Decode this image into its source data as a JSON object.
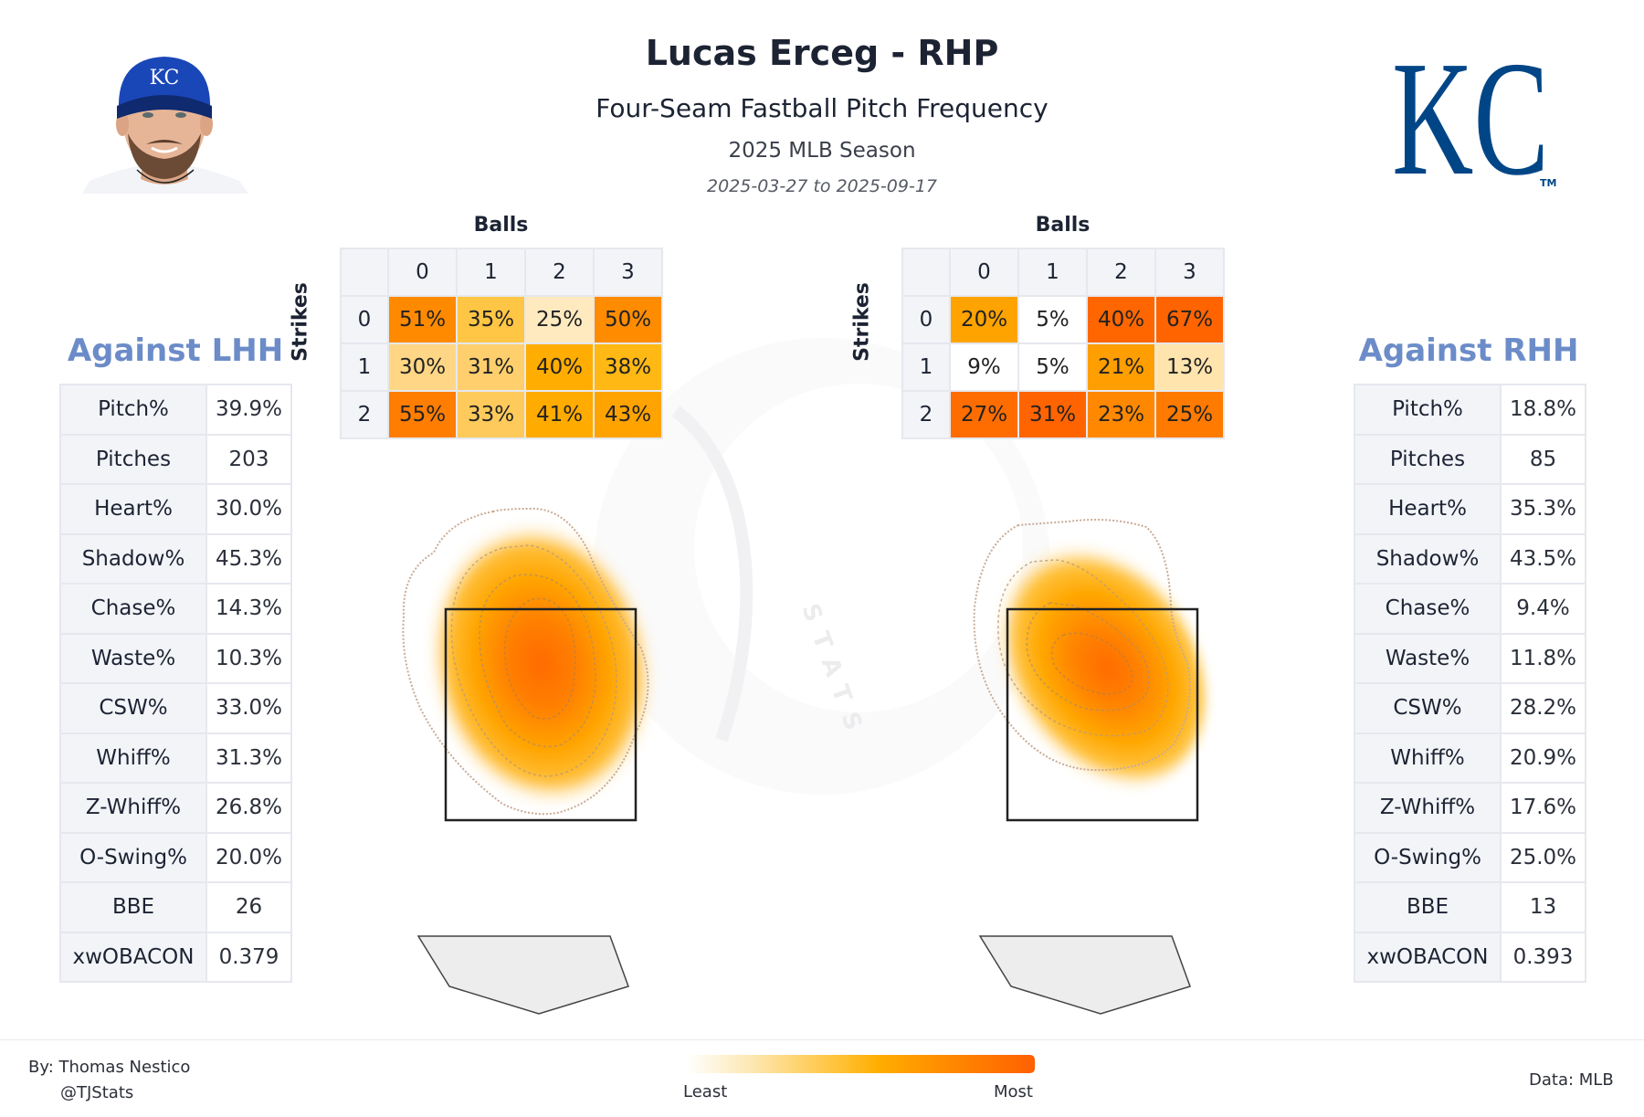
{
  "header": {
    "title": "Lucas Erceg - RHP",
    "subtitle": "Four-Seam Fastball Pitch Frequency",
    "season": "2025 MLB Season",
    "date_range": "2025-03-27 to 2025-09-17"
  },
  "logo": {
    "text": "KC",
    "tm": "TM",
    "color": "#004687"
  },
  "headshot": {
    "cap_text": "KC",
    "cap_color": "#1a47b8"
  },
  "count_tables": {
    "balls_label": "Balls",
    "strikes_label": "Strikes",
    "ball_headers": [
      "0",
      "1",
      "2",
      "3"
    ],
    "strike_headers": [
      "0",
      "1",
      "2"
    ],
    "lhh": {
      "rows": [
        [
          "51%",
          "35%",
          "25%",
          "50%"
        ],
        [
          "30%",
          "31%",
          "40%",
          "38%"
        ],
        [
          "55%",
          "33%",
          "41%",
          "43%"
        ]
      ],
      "colors": [
        [
          "#ff8a00",
          "#ffc645",
          "#ffeac0",
          "#ff8c00"
        ],
        [
          "#ffd685",
          "#ffcf6e",
          "#ffad00",
          "#ffb814"
        ],
        [
          "#ff7d00",
          "#ffca5c",
          "#ffab00",
          "#ffa300"
        ]
      ]
    },
    "rhh": {
      "rows": [
        [
          "20%",
          "5%",
          "40%",
          "67%"
        ],
        [
          "9%",
          "5%",
          "21%",
          "13%"
        ],
        [
          "27%",
          "31%",
          "23%",
          "25%"
        ]
      ],
      "colors": [
        [
          "#ffa300",
          "#ffffff",
          "#ff6600",
          "#ff6400"
        ],
        [
          "#ffffff",
          "#ffffff",
          "#ff9e00",
          "#ffe4ad"
        ],
        [
          "#ff6d00",
          "#ff6400",
          "#ff8800",
          "#ff7a00"
        ]
      ]
    }
  },
  "stats": {
    "labels": [
      "Pitch%",
      "Pitches",
      "Heart%",
      "Shadow%",
      "Chase%",
      "Waste%",
      "CSW%",
      "Whiff%",
      "Z-Whiff%",
      "O-Swing%",
      "BBE",
      "xwOBACON"
    ],
    "lhh": {
      "title": "Against LHH",
      "values": [
        "39.9%",
        "203",
        "30.0%",
        "45.3%",
        "14.3%",
        "10.3%",
        "33.0%",
        "31.3%",
        "26.8%",
        "20.0%",
        "26",
        "0.379"
      ]
    },
    "rhh": {
      "title": "Against RHH",
      "values": [
        "18.8%",
        "85",
        "35.3%",
        "43.5%",
        "9.4%",
        "11.8%",
        "28.2%",
        "20.9%",
        "17.6%",
        "25.0%",
        "13",
        "0.393"
      ]
    }
  },
  "watermark": {
    "text": "STATS"
  },
  "legend": {
    "least": "Least",
    "most": "Most",
    "gradient": [
      "#ffffff",
      "#fde8b4",
      "#ffc84a",
      "#ffae00",
      "#ff8a00",
      "#ff6000"
    ]
  },
  "footer": {
    "author": "By: Thomas Nestico",
    "handle": "@TJStats",
    "source": "Data: MLB"
  },
  "chart_data": [
    {
      "type": "table",
      "title": "Four-Seam Fastball Frequency by Count - Against LHH",
      "xlabel": "Balls",
      "ylabel": "Strikes",
      "columns": [
        "0",
        "1",
        "2",
        "3"
      ],
      "rows": [
        "0",
        "1",
        "2"
      ],
      "values": [
        [
          51,
          35,
          25,
          50
        ],
        [
          30,
          31,
          40,
          38
        ],
        [
          55,
          33,
          41,
          43
        ]
      ],
      "unit": "%"
    },
    {
      "type": "table",
      "title": "Four-Seam Fastball Frequency by Count - Against RHH",
      "xlabel": "Balls",
      "ylabel": "Strikes",
      "columns": [
        "0",
        "1",
        "2",
        "3"
      ],
      "rows": [
        "0",
        "1",
        "2"
      ],
      "values": [
        [
          20,
          5,
          40,
          67
        ],
        [
          9,
          5,
          21,
          13
        ],
        [
          27,
          31,
          23,
          25
        ]
      ],
      "unit": "%"
    },
    {
      "type": "heatmap",
      "title": "Pitch Location Density - Against LHH",
      "description": "KDE of pitch locations, peak centered in upper-middle of strike zone",
      "legend": [
        "Least",
        "Most"
      ]
    },
    {
      "type": "heatmap",
      "title": "Pitch Location Density - Against RHH",
      "description": "KDE of pitch locations, peak slightly above middle toward arm side of strike zone",
      "legend": [
        "Least",
        "Most"
      ]
    },
    {
      "type": "table",
      "title": "Against LHH",
      "columns": [
        "Stat",
        "Value"
      ],
      "rows": [
        [
          "Pitch%",
          "39.9%"
        ],
        [
          "Pitches",
          "203"
        ],
        [
          "Heart%",
          "30.0%"
        ],
        [
          "Shadow%",
          "45.3%"
        ],
        [
          "Chase%",
          "14.3%"
        ],
        [
          "Waste%",
          "10.3%"
        ],
        [
          "CSW%",
          "33.0%"
        ],
        [
          "Whiff%",
          "31.3%"
        ],
        [
          "Z-Whiff%",
          "26.8%"
        ],
        [
          "O-Swing%",
          "20.0%"
        ],
        [
          "BBE",
          "26"
        ],
        [
          "xwOBACON",
          "0.379"
        ]
      ]
    },
    {
      "type": "table",
      "title": "Against RHH",
      "columns": [
        "Stat",
        "Value"
      ],
      "rows": [
        [
          "Pitch%",
          "18.8%"
        ],
        [
          "Pitches",
          "85"
        ],
        [
          "Heart%",
          "35.3%"
        ],
        [
          "Shadow%",
          "43.5%"
        ],
        [
          "Chase%",
          "9.4%"
        ],
        [
          "Waste%",
          "11.8%"
        ],
        [
          "CSW%",
          "28.2%"
        ],
        [
          "Whiff%",
          "20.9%"
        ],
        [
          "Z-Whiff%",
          "17.6%"
        ],
        [
          "O-Swing%",
          "25.0%"
        ],
        [
          "BBE",
          "13"
        ],
        [
          "xwOBACON",
          "0.393"
        ]
      ]
    }
  ]
}
